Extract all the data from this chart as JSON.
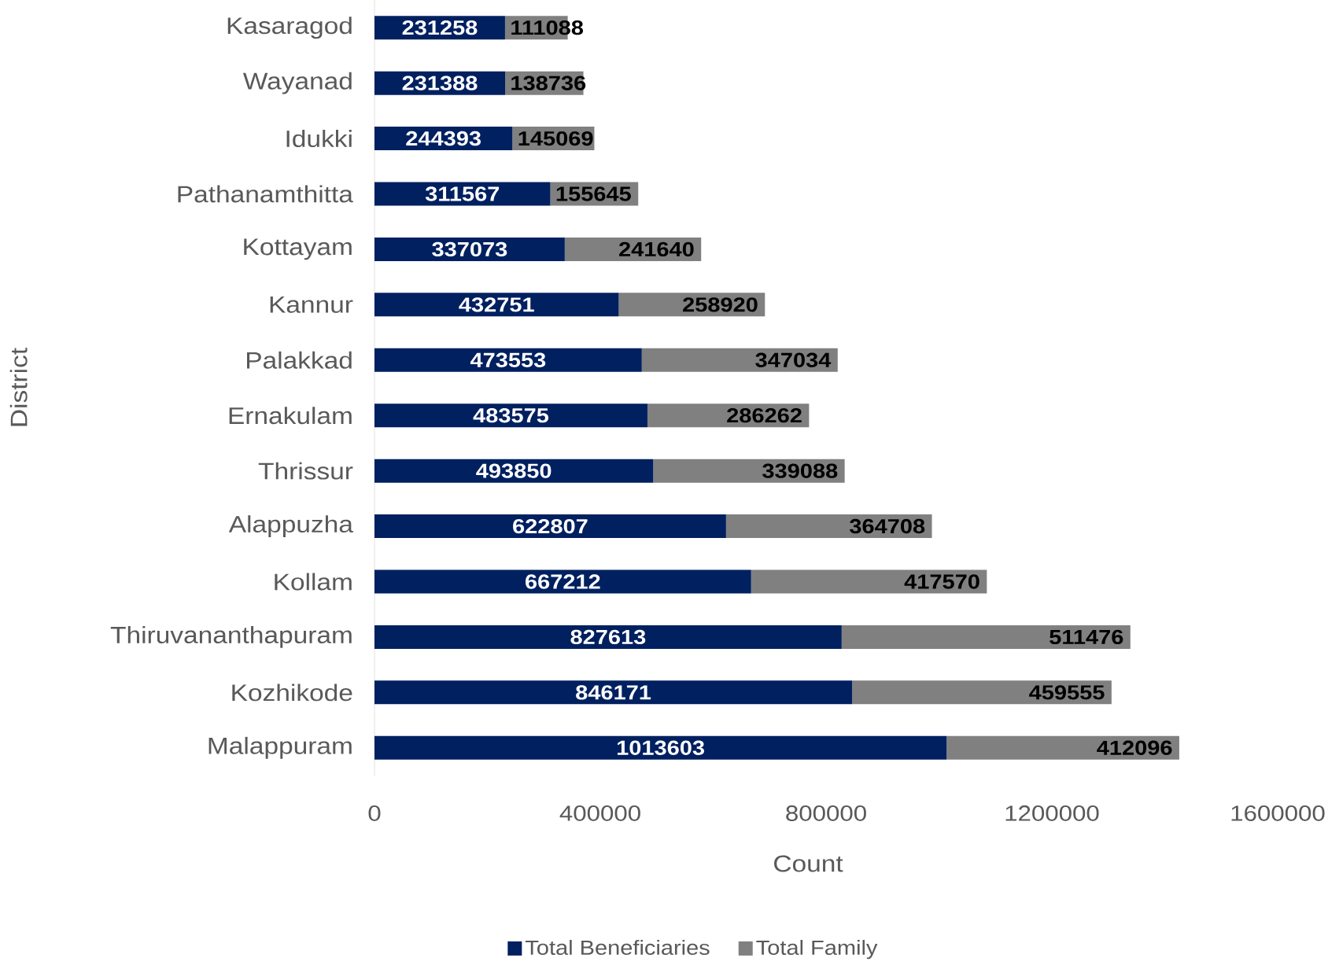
{
  "chart_data": {
    "type": "bar",
    "orientation": "horizontal",
    "stacked": true,
    "xlabel": "Count",
    "ylabel": "District",
    "categories": [
      "Kasaragod",
      "Wayanad",
      "Idukki",
      "Pathanamthitta",
      "Kottayam",
      "Kannur",
      "Palakkad",
      "Ernakulam",
      "Thrissur",
      "Alappuzha",
      "Kollam",
      "Thiruvananthapuram",
      "Kozhikode",
      "Malappuram"
    ],
    "series": [
      {
        "name": "Total Beneficiaries",
        "color": "#002060",
        "values": [
          231258,
          231388,
          244393,
          311567,
          337073,
          432751,
          473553,
          483575,
          493850,
          622807,
          667212,
          827613,
          846171,
          1013603
        ]
      },
      {
        "name": "Total Family",
        "color": "#808080",
        "values": [
          111088,
          138736,
          145069,
          155645,
          241640,
          258920,
          347034,
          286262,
          339088,
          364708,
          417570,
          511476,
          459555,
          412096
        ]
      }
    ],
    "xlim": [
      0,
      1600000
    ],
    "xticks": [
      0,
      400000,
      800000,
      1200000,
      1600000
    ],
    "data_labels": true,
    "legend": "bottom"
  }
}
